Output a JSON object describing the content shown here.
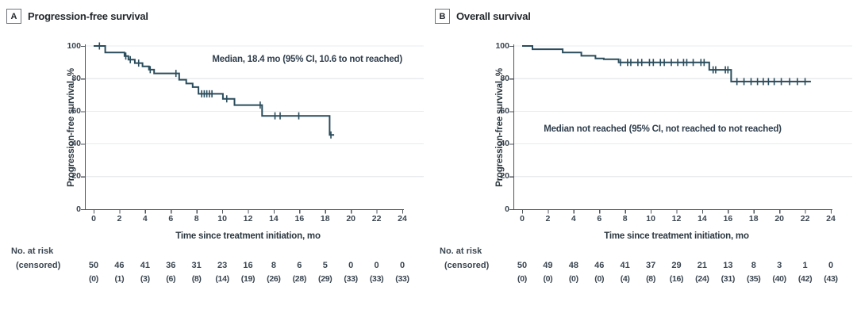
{
  "colors": {
    "curve": "#2a4c5c",
    "grid": "#e9ebec",
    "axis": "#4f565c",
    "tick_text": "#3a4550",
    "heading_text": "#23282c",
    "annotation_text": "#2e3d4c",
    "badge_border": "#70767c",
    "background": "#ffffff"
  },
  "chart_data": [
    {
      "type": "line",
      "subtype": "kaplan-meier-step",
      "panel_label": "A",
      "title": "Progression-free survival",
      "annotation": "Median, 18.4 mo (95% CI, 10.6 to not reached)",
      "annotation_position": "upper-right",
      "xlabel": "Time since treatment initiation, mo",
      "ylabel": "Progression-free survival, %",
      "xlim": [
        0,
        24
      ],
      "ylim": [
        0,
        100
      ],
      "x_ticks": [
        0,
        2,
        4,
        6,
        8,
        10,
        12,
        14,
        16,
        18,
        20,
        22,
        24
      ],
      "y_ticks": [
        0,
        20,
        40,
        60,
        80,
        100
      ],
      "grid": true,
      "legend": "none",
      "steps": [
        [
          0,
          100
        ],
        [
          0.9,
          96
        ],
        [
          2.4,
          93.8
        ],
        [
          2.7,
          91.6
        ],
        [
          3.2,
          89.5
        ],
        [
          3.8,
          87.5
        ],
        [
          4.3,
          85.5
        ],
        [
          4.7,
          83.2
        ],
        [
          6.65,
          79.3
        ],
        [
          7.2,
          77
        ],
        [
          7.7,
          74.8
        ],
        [
          8.15,
          70.7
        ],
        [
          10.05,
          67.6
        ],
        [
          10.95,
          63.8
        ],
        [
          13.1,
          57.2
        ],
        [
          18.35,
          45.5
        ]
      ],
      "end_time": 18.7,
      "censor_marks": [
        [
          0.45,
          100
        ],
        [
          2.5,
          93.8
        ],
        [
          2.85,
          91.6
        ],
        [
          3.5,
          89.5
        ],
        [
          4.4,
          85.5
        ],
        [
          6.4,
          83.2
        ],
        [
          8.4,
          70.7
        ],
        [
          8.6,
          70.7
        ],
        [
          8.8,
          70.7
        ],
        [
          9.0,
          70.7
        ],
        [
          9.2,
          70.7
        ],
        [
          10.35,
          67.6
        ],
        [
          12.95,
          63.8
        ],
        [
          14.1,
          57.2
        ],
        [
          14.5,
          57.2
        ],
        [
          15.95,
          57.2
        ],
        [
          18.45,
          45.5
        ]
      ],
      "at_risk_header": "No. at risk",
      "censored_header": "(censored)",
      "at_risk": [
        50,
        46,
        41,
        36,
        31,
        23,
        16,
        8,
        6,
        5,
        0,
        0,
        0
      ],
      "censored": [
        "(0)",
        "(1)",
        "(3)",
        "(6)",
        "(8)",
        "(14)",
        "(19)",
        "(26)",
        "(28)",
        "(29)",
        "(33)",
        "(33)",
        "(33)"
      ]
    },
    {
      "type": "line",
      "subtype": "kaplan-meier-step",
      "panel_label": "B",
      "title": "Overall survival",
      "annotation": "Median not reached (95% CI, not reached to not reached)",
      "annotation_position": "center",
      "xlabel": "Time since treatment initiation, mo",
      "ylabel": "Progression-free survival, %",
      "xlim": [
        0,
        24
      ],
      "ylim": [
        0,
        100
      ],
      "x_ticks": [
        0,
        2,
        4,
        6,
        8,
        10,
        12,
        14,
        16,
        18,
        20,
        22,
        24
      ],
      "y_ticks": [
        0,
        20,
        40,
        60,
        80,
        100
      ],
      "grid": true,
      "legend": "none",
      "steps": [
        [
          0,
          100
        ],
        [
          0.8,
          98
        ],
        [
          3.15,
          96
        ],
        [
          4.6,
          94
        ],
        [
          5.7,
          92.4
        ],
        [
          6.35,
          91.9
        ],
        [
          7.5,
          89.9
        ],
        [
          14.55,
          85.4
        ],
        [
          16.25,
          78.2
        ]
      ],
      "end_time": 22.45,
      "censor_marks": [
        [
          7.65,
          89.9
        ],
        [
          8.2,
          89.9
        ],
        [
          8.45,
          89.9
        ],
        [
          9.0,
          89.9
        ],
        [
          9.3,
          89.9
        ],
        [
          9.9,
          89.9
        ],
        [
          10.2,
          89.9
        ],
        [
          10.75,
          89.9
        ],
        [
          11.05,
          89.9
        ],
        [
          11.6,
          89.9
        ],
        [
          12.1,
          89.9
        ],
        [
          12.55,
          89.9
        ],
        [
          12.8,
          89.9
        ],
        [
          13.3,
          89.9
        ],
        [
          13.9,
          89.9
        ],
        [
          14.15,
          89.9
        ],
        [
          14.85,
          85.4
        ],
        [
          15.05,
          85.4
        ],
        [
          15.8,
          85.4
        ],
        [
          16.0,
          85.4
        ],
        [
          16.7,
          78.2
        ],
        [
          17.25,
          78.2
        ],
        [
          17.8,
          78.2
        ],
        [
          18.3,
          78.2
        ],
        [
          18.75,
          78.2
        ],
        [
          19.15,
          78.2
        ],
        [
          19.6,
          78.2
        ],
        [
          20.15,
          78.2
        ],
        [
          20.8,
          78.2
        ],
        [
          21.4,
          78.2
        ],
        [
          22.0,
          78.2
        ]
      ],
      "at_risk_header": "No. at risk",
      "censored_header": "(censored)",
      "at_risk": [
        50,
        49,
        48,
        46,
        41,
        37,
        29,
        21,
        13,
        8,
        3,
        1,
        0
      ],
      "censored": [
        "(0)",
        "(0)",
        "(0)",
        "(0)",
        "(4)",
        "(8)",
        "(16)",
        "(24)",
        "(31)",
        "(35)",
        "(40)",
        "(42)",
        "(43)"
      ]
    }
  ]
}
